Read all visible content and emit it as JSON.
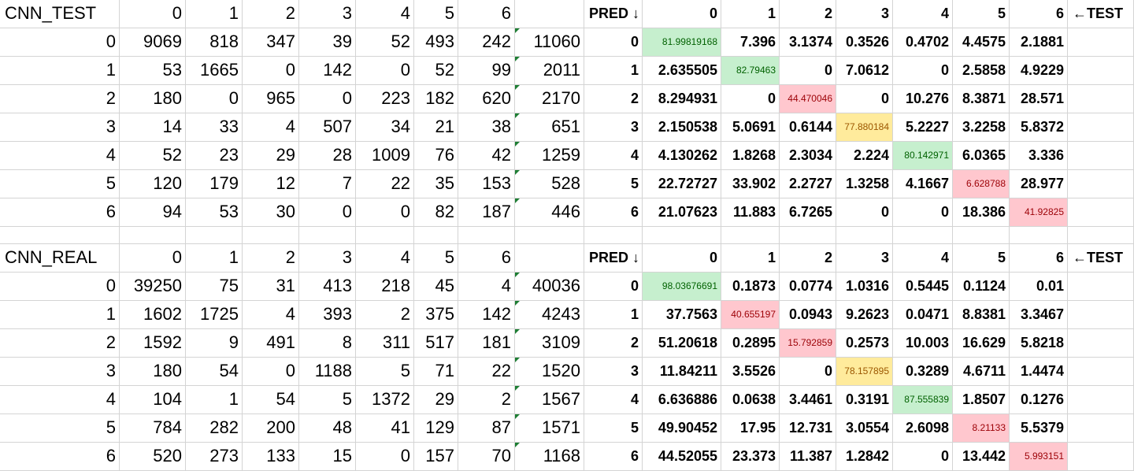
{
  "blocks": [
    {
      "title": "CNN_TEST",
      "pred_label": "PRED ↓",
      "test_label": "←TEST",
      "col_headers": [
        "0",
        "1",
        "2",
        "3",
        "4",
        "5",
        "6"
      ],
      "counts": [
        [
          "0",
          "9069",
          "818",
          "347",
          "39",
          "52",
          "493",
          "242",
          "11060"
        ],
        [
          "1",
          "53",
          "1665",
          "0",
          "142",
          "0",
          "52",
          "99",
          "2011"
        ],
        [
          "2",
          "180",
          "0",
          "965",
          "0",
          "223",
          "182",
          "620",
          "2170"
        ],
        [
          "3",
          "14",
          "33",
          "4",
          "507",
          "34",
          "21",
          "38",
          "651"
        ],
        [
          "4",
          "52",
          "23",
          "29",
          "28",
          "1009",
          "76",
          "42",
          "1259"
        ],
        [
          "5",
          "120",
          "179",
          "12",
          "7",
          "22",
          "35",
          "153",
          "528"
        ],
        [
          "6",
          "94",
          "53",
          "30",
          "0",
          "0",
          "82",
          "187",
          "446"
        ]
      ],
      "percents": [
        [
          "0",
          "81.99819168",
          "7.396",
          "3.1374",
          "0.3526",
          "0.4702",
          "4.4575",
          "2.1881"
        ],
        [
          "1",
          "2.635505",
          "82.79463",
          "0",
          "7.0612",
          "0",
          "2.5858",
          "4.9229"
        ],
        [
          "2",
          "8.294931",
          "0",
          "44.470046",
          "0",
          "10.276",
          "8.3871",
          "28.571"
        ],
        [
          "3",
          "2.150538",
          "5.0691",
          "0.6144",
          "77.880184",
          "5.2227",
          "3.2258",
          "5.8372"
        ],
        [
          "4",
          "4.130262",
          "1.8268",
          "2.3034",
          "2.224",
          "80.142971",
          "6.0365",
          "3.336"
        ],
        [
          "5",
          "22.72727",
          "33.902",
          "2.2727",
          "1.3258",
          "4.1667",
          "6.628788",
          "28.977"
        ],
        [
          "6",
          "21.07623",
          "11.883",
          "6.7265",
          "0",
          "0",
          "18.386",
          "41.92825"
        ]
      ],
      "diag_colors": [
        "green",
        "green",
        "red",
        "yellow",
        "green",
        "red",
        "red"
      ]
    },
    {
      "title": "CNN_REAL",
      "pred_label": "PRED ↓",
      "test_label": "←TEST",
      "col_headers": [
        "0",
        "1",
        "2",
        "3",
        "4",
        "5",
        "6"
      ],
      "counts": [
        [
          "0",
          "39250",
          "75",
          "31",
          "413",
          "218",
          "45",
          "4",
          "40036"
        ],
        [
          "1",
          "1602",
          "1725",
          "4",
          "393",
          "2",
          "375",
          "142",
          "4243"
        ],
        [
          "2",
          "1592",
          "9",
          "491",
          "8",
          "311",
          "517",
          "181",
          "3109"
        ],
        [
          "3",
          "180",
          "54",
          "0",
          "1188",
          "5",
          "71",
          "22",
          "1520"
        ],
        [
          "4",
          "104",
          "1",
          "54",
          "5",
          "1372",
          "29",
          "2",
          "1567"
        ],
        [
          "5",
          "784",
          "282",
          "200",
          "48",
          "41",
          "129",
          "87",
          "1571"
        ],
        [
          "6",
          "520",
          "273",
          "133",
          "15",
          "0",
          "157",
          "70",
          "1168"
        ]
      ],
      "percents": [
        [
          "0",
          "98.03676691",
          "0.1873",
          "0.0774",
          "1.0316",
          "0.5445",
          "0.1124",
          "0.01"
        ],
        [
          "1",
          "37.7563",
          "40.655197",
          "0.0943",
          "9.2623",
          "0.0471",
          "8.8381",
          "3.3467"
        ],
        [
          "2",
          "51.20618",
          "0.2895",
          "15.792859",
          "0.2573",
          "10.003",
          "16.629",
          "5.8218"
        ],
        [
          "3",
          "11.84211",
          "3.5526",
          "0",
          "78.157895",
          "0.3289",
          "4.6711",
          "1.4474"
        ],
        [
          "4",
          "6.636886",
          "0.0638",
          "3.4461",
          "0.3191",
          "87.555839",
          "1.8507",
          "0.1276"
        ],
        [
          "5",
          "49.90452",
          "17.95",
          "12.731",
          "3.0554",
          "2.6098",
          "8.21133",
          "5.5379"
        ],
        [
          "6",
          "44.52055",
          "23.373",
          "11.387",
          "1.2842",
          "0",
          "13.442",
          "5.993151"
        ]
      ],
      "diag_colors": [
        "green",
        "red",
        "red",
        "yellow",
        "green",
        "red",
        "red"
      ]
    }
  ]
}
